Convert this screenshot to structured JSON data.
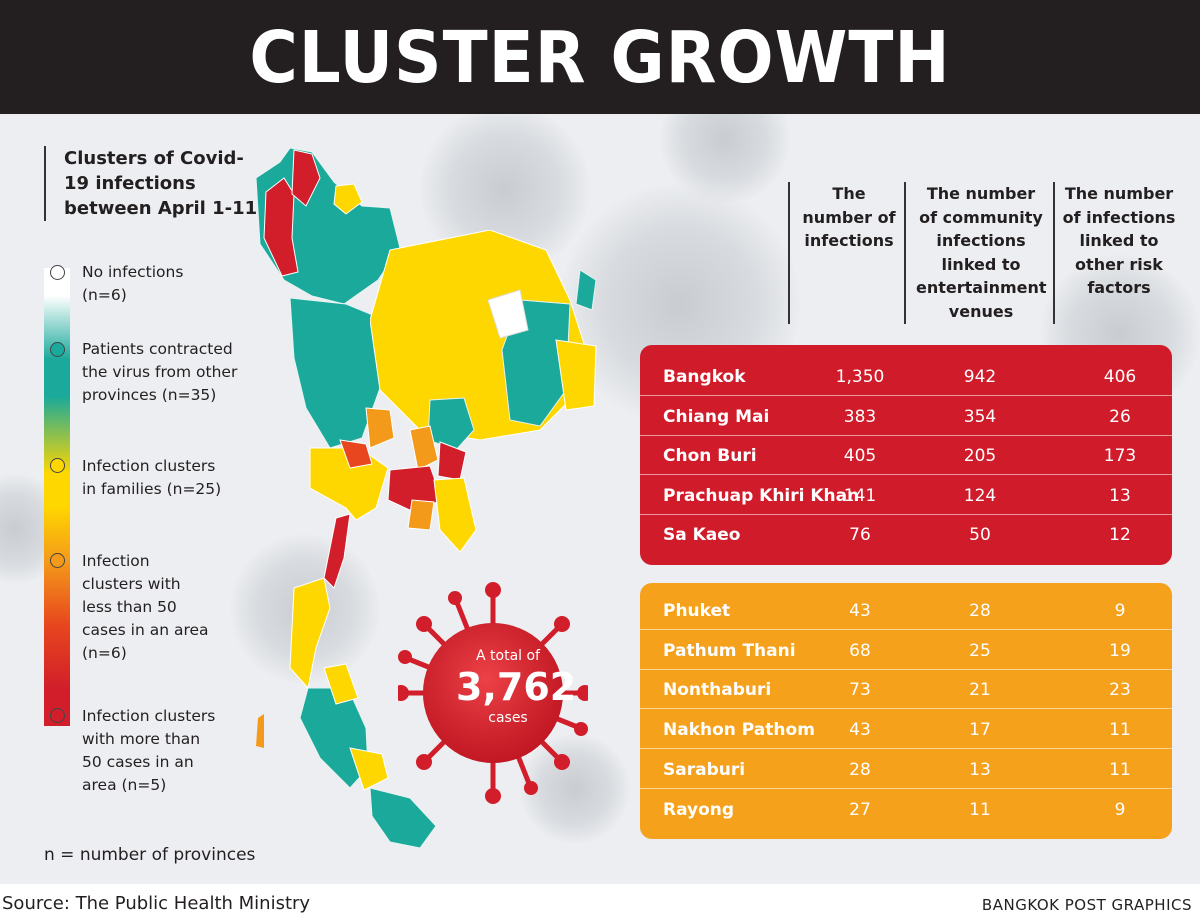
{
  "header": {
    "title": "CLUSTER GROWTH"
  },
  "subtitle": "Clusters of Covid-19 infections between April 1-11",
  "legend": {
    "items": [
      {
        "label": "No infections (n=6)",
        "color": "#ffffff"
      },
      {
        "label": "Patients contracted the virus from other provinces (n=35)",
        "color": "#1aa99b"
      },
      {
        "label": "Infection clusters in families (n=25)",
        "color": "#ffd700"
      },
      {
        "label": "Infection clusters with less than 50 cases in an area (n=6)",
        "color": "#f49a1a"
      },
      {
        "label": "Infection clusters with more than 50 cases in an area (n=5)",
        "color": "#d11e2a"
      }
    ],
    "note": "n = number of provinces"
  },
  "total": {
    "prefix": "A total of",
    "value": "3,762",
    "suffix": "cases"
  },
  "chart_data": {
    "type": "table",
    "columns": [
      "The number of infections",
      "The number of community infections linked to entertainment venues",
      "The number of infections linked to other risk factors"
    ],
    "groups": [
      {
        "color": "#d01c2a",
        "rows": [
          {
            "province": "Bangkok",
            "values": [
              "1,350",
              "942",
              "406"
            ]
          },
          {
            "province": "Chiang Mai",
            "values": [
              "383",
              "354",
              "26"
            ]
          },
          {
            "province": "Chon Buri",
            "values": [
              "405",
              "205",
              "173"
            ]
          },
          {
            "province": "Prachuap Khiri Khan",
            "values": [
              "141",
              "124",
              "13"
            ]
          },
          {
            "province": "Sa Kaeo",
            "values": [
              "76",
              "50",
              "12"
            ]
          }
        ]
      },
      {
        "color": "#f5a11c",
        "rows": [
          {
            "province": "Phuket",
            "values": [
              "43",
              "28",
              "9"
            ]
          },
          {
            "province": "Pathum Thani",
            "values": [
              "68",
              "25",
              "19"
            ]
          },
          {
            "province": "Nonthaburi",
            "values": [
              "73",
              "21",
              "23"
            ]
          },
          {
            "province": "Nakhon Pathom",
            "values": [
              "43",
              "17",
              "11"
            ]
          },
          {
            "province": "Saraburi",
            "values": [
              "28",
              "13",
              "11"
            ]
          },
          {
            "province": "Rayong",
            "values": [
              "27",
              "11",
              "9"
            ]
          }
        ]
      }
    ]
  },
  "footer": {
    "source": "Source: The Public Health Ministry",
    "credit": "BANGKOK POST GRAPHICS"
  }
}
